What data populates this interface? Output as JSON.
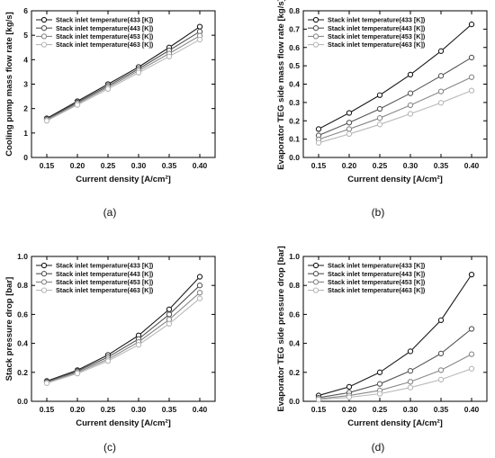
{
  "colors": [
    "#1a1a1a",
    "#555555",
    "#888888",
    "#b8b8b8"
  ],
  "legend_labels": [
    "Stack inlet temperature(433 [K])",
    "Stack inlet temperature(443 [K])",
    "Stack inlet temperature(453 [K])",
    "Stack inlet temperature(463 [K])"
  ],
  "chart_data": [
    {
      "type": "line",
      "caption": "(a)",
      "xlabel": "Current density [A/cm²]",
      "ylabel": "Cooling pump mass flow rate [kg/s]",
      "x": [
        0.15,
        0.2,
        0.25,
        0.3,
        0.35,
        0.4
      ],
      "xticks": [
        "0.15",
        "0.20",
        "0.25",
        "0.30",
        "0.35",
        "0.40"
      ],
      "xlim": [
        0.125,
        0.425
      ],
      "ylim": [
        0,
        6
      ],
      "yticks": [
        "0",
        "1",
        "2",
        "3",
        "4",
        "5",
        "6"
      ],
      "legend_placement": "top-left",
      "series": [
        {
          "name": "Stack inlet temperature(433 [K])",
          "values": [
            1.6,
            2.3,
            3.0,
            3.7,
            4.5,
            5.35
          ]
        },
        {
          "name": "Stack inlet temperature(443 [K])",
          "values": [
            1.57,
            2.25,
            2.93,
            3.62,
            4.38,
            5.15
          ]
        },
        {
          "name": "Stack inlet temperature(453 [K])",
          "values": [
            1.54,
            2.2,
            2.87,
            3.55,
            4.25,
            4.98
          ]
        },
        {
          "name": "Stack inlet temperature(463 [K])",
          "values": [
            1.5,
            2.15,
            2.8,
            3.47,
            4.13,
            4.82
          ]
        }
      ]
    },
    {
      "type": "line",
      "caption": "(b)",
      "xlabel": "Current density [A/cm²]",
      "ylabel": "Evaporator TEG side mass flow rate [kg/s]",
      "x": [
        0.15,
        0.2,
        0.25,
        0.3,
        0.35,
        0.4
      ],
      "xticks": [
        "0.15",
        "0.20",
        "0.25",
        "0.30",
        "0.35",
        "0.40"
      ],
      "xlim": [
        0.125,
        0.425
      ],
      "ylim": [
        0,
        0.8
      ],
      "yticks": [
        "0.0",
        "0.1",
        "0.2",
        "0.3",
        "0.4",
        "0.5",
        "0.6",
        "0.7",
        "0.8"
      ],
      "legend_placement": "top-left",
      "series": [
        {
          "name": "Stack inlet temperature(433 [K])",
          "values": [
            0.155,
            0.243,
            0.34,
            0.452,
            0.58,
            0.726
          ]
        },
        {
          "name": "Stack inlet temperature(443 [K])",
          "values": [
            0.12,
            0.19,
            0.265,
            0.35,
            0.445,
            0.545
          ]
        },
        {
          "name": "Stack inlet temperature(453 [K])",
          "values": [
            0.098,
            0.155,
            0.215,
            0.285,
            0.36,
            0.438
          ]
        },
        {
          "name": "Stack inlet temperature(463 [K])",
          "values": [
            0.08,
            0.128,
            0.18,
            0.238,
            0.298,
            0.365
          ]
        }
      ]
    },
    {
      "type": "line",
      "caption": "(c)",
      "xlabel": "Current density [A/cm²]",
      "ylabel": "Stack pressure drop [bar]",
      "x": [
        0.15,
        0.2,
        0.25,
        0.3,
        0.35,
        0.4
      ],
      "xticks": [
        "0.15",
        "0.20",
        "0.25",
        "0.30",
        "0.35",
        "0.40"
      ],
      "xlim": [
        0.125,
        0.425
      ],
      "ylim": [
        0,
        1.0
      ],
      "yticks": [
        "0.0",
        "0.2",
        "0.4",
        "0.6",
        "0.8",
        "1.0"
      ],
      "legend_placement": "top-left",
      "series": [
        {
          "name": "Stack inlet temperature(433 [K])",
          "values": [
            0.14,
            0.215,
            0.32,
            0.455,
            0.635,
            0.86
          ]
        },
        {
          "name": "Stack inlet temperature(443 [K])",
          "values": [
            0.135,
            0.208,
            0.305,
            0.43,
            0.6,
            0.8
          ]
        },
        {
          "name": "Stack inlet temperature(453 [K])",
          "values": [
            0.13,
            0.2,
            0.29,
            0.41,
            0.565,
            0.75
          ]
        },
        {
          "name": "Stack inlet temperature(463 [K])",
          "values": [
            0.125,
            0.192,
            0.278,
            0.39,
            0.535,
            0.71
          ]
        }
      ]
    },
    {
      "type": "line",
      "caption": "(d)",
      "xlabel": "Current density [A/cm²]",
      "ylabel": "Evaporator TEG side pressure drop [bar]",
      "x": [
        0.15,
        0.2,
        0.25,
        0.3,
        0.35,
        0.4
      ],
      "xticks": [
        "0.15",
        "0.20",
        "0.25",
        "0.30",
        "0.35",
        "0.40"
      ],
      "xlim": [
        0.125,
        0.425
      ],
      "ylim": [
        0,
        1.0
      ],
      "yticks": [
        "0.0",
        "0.2",
        "0.4",
        "0.6",
        "0.8",
        "1.0"
      ],
      "legend_placement": "top-left",
      "series": [
        {
          "name": "Stack inlet temperature(433 [K])",
          "values": [
            0.04,
            0.1,
            0.2,
            0.345,
            0.56,
            0.875
          ]
        },
        {
          "name": "Stack inlet temperature(443 [K])",
          "values": [
            0.025,
            0.06,
            0.12,
            0.21,
            0.33,
            0.5
          ]
        },
        {
          "name": "Stack inlet temperature(453 [K])",
          "values": [
            0.017,
            0.04,
            0.075,
            0.135,
            0.215,
            0.325
          ]
        },
        {
          "name": "Stack inlet temperature(463 [K])",
          "values": [
            0.012,
            0.028,
            0.052,
            0.095,
            0.15,
            0.225
          ]
        }
      ]
    }
  ]
}
